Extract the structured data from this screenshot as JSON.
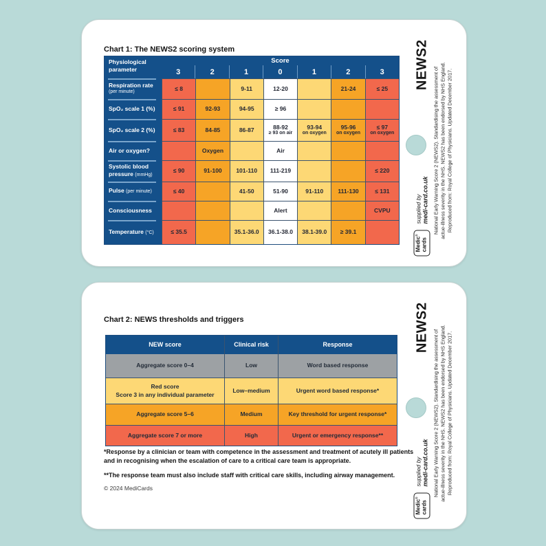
{
  "card1": {
    "title": "Chart 1: The NEWS2 scoring system",
    "table": {
      "corner_header_line1": "Physiological",
      "corner_header_line2": "parameter",
      "score_header": "Score",
      "score_columns": [
        "3",
        "2",
        "1",
        "0",
        "1",
        "2",
        "3"
      ],
      "column_colors": [
        "salmon",
        "orange",
        "yellow",
        "white",
        "yellow",
        "orange",
        "salmon"
      ],
      "rows": [
        {
          "label": "Respiration rate",
          "note": "(per minute)",
          "note_block": true,
          "cells": [
            {
              "t": "≤ 8"
            },
            {},
            {
              "t": "9-11"
            },
            {
              "t": "12-20"
            },
            {},
            {
              "t": "21-24"
            },
            {
              "t": "≤ 25"
            }
          ]
        },
        {
          "label": "SpO₂ scale 1 (%)",
          "note": "",
          "cells": [
            {
              "t": "≤ 91"
            },
            {
              "t": "92-93"
            },
            {
              "t": "94-95"
            },
            {
              "t": "≥ 96"
            },
            {},
            {},
            {}
          ]
        },
        {
          "label": "SpO₂ scale 2 (%)",
          "note": "",
          "cells": [
            {
              "t": "≤ 83"
            },
            {
              "t": "84-85"
            },
            {
              "t": "86-87"
            },
            {
              "t": "88-92",
              "s": "≥ 93 on air"
            },
            {
              "t": "93-94",
              "s": "on oxygen"
            },
            {
              "t": "95-96",
              "s": "on oxygen"
            },
            {
              "t": "≤ 97",
              "s": "on oxygen"
            }
          ]
        },
        {
          "label": "Air or oxygen?",
          "note": "",
          "cells": [
            {},
            {
              "t": "Oxygen"
            },
            {},
            {
              "t": "Air"
            },
            {},
            {},
            {}
          ]
        },
        {
          "label": "Systolic blood pressure",
          "note": "(mmHg)",
          "cells": [
            {
              "t": "≤ 90"
            },
            {
              "t": "91-100"
            },
            {
              "t": "101-110"
            },
            {
              "t": "111-219"
            },
            {},
            {},
            {
              "t": "≤ 220"
            }
          ]
        },
        {
          "label": "Pulse",
          "note": "(per minute)",
          "cells": [
            {
              "t": "≤ 40"
            },
            {},
            {
              "t": "41-50"
            },
            {
              "t": "51-90"
            },
            {
              "t": "91-110"
            },
            {
              "t": "111-130"
            },
            {
              "t": "≤ 131"
            }
          ]
        },
        {
          "label": "Consciousness",
          "note": "",
          "cells": [
            {},
            {},
            {},
            {
              "t": "Alert"
            },
            {},
            {},
            {
              "t": "CVPU"
            }
          ]
        },
        {
          "label": "Temperature",
          "note": "(°C)",
          "cells": [
            {
              "t": "≤ 35.5"
            },
            {},
            {
              "t": "35.1-36.0"
            },
            {
              "t": "36.1-38.0"
            },
            {
              "t": "38.1-39.0"
            },
            {
              "t": "≥ 39.1"
            },
            {}
          ]
        }
      ]
    }
  },
  "card2": {
    "title": "Chart 2: NEWS thresholds and triggers",
    "table": {
      "headers": [
        "NEW score",
        "Clinical risk",
        "Response"
      ],
      "rows": [
        {
          "color": "gray",
          "score": [
            "Aggregate score 0–4"
          ],
          "risk": "Low",
          "response": "Word based response"
        },
        {
          "color": "yellow",
          "score": [
            "Red score",
            "Score 3 in any individual parameter"
          ],
          "risk": "Low–medium",
          "response": "Urgent word based response*"
        },
        {
          "color": "orange",
          "score": [
            "Aggregate score 5–6"
          ],
          "risk": "Medium",
          "response": "Key threshold for urgent response*"
        },
        {
          "color": "salmon",
          "score": [
            "Aggregate score 7 or more"
          ],
          "risk": "High",
          "response": "Urgent or emergency response**"
        }
      ]
    },
    "footnote1": "*Response by a clinician or team with competence in the assessment and treatment of acutely ill patients and in recognising when the escalation of care to a critical care team is appropriate.",
    "footnote2": "**The response team must also include staff with critical care skills, including airway management.",
    "copyright": "© 2024 MediCards"
  },
  "sidebar": {
    "title": "NEWS2",
    "supplied_by": "supplied by",
    "supplier": "medi-card.co.uk",
    "logo_line1": "Medic",
    "logo_line2": "cards",
    "logo_mark": "®",
    "disclaimer_line1": "National Early Warning Score 2 (NEWS2). Standardising the assessment of",
    "disclaimer_line2": "actue-illness severity in the NHS. NEWS2 has been endorsed by NHS England.",
    "disclaimer_line3": "Reproduced from: Royal College of Physicians. Updated December 2017."
  },
  "colors": {
    "background": "#b9dad8",
    "navy": "#14508a",
    "salmon": "#f2684c",
    "orange": "#f6a426",
    "yellow": "#fdd875",
    "gray": "#9da1a4"
  }
}
